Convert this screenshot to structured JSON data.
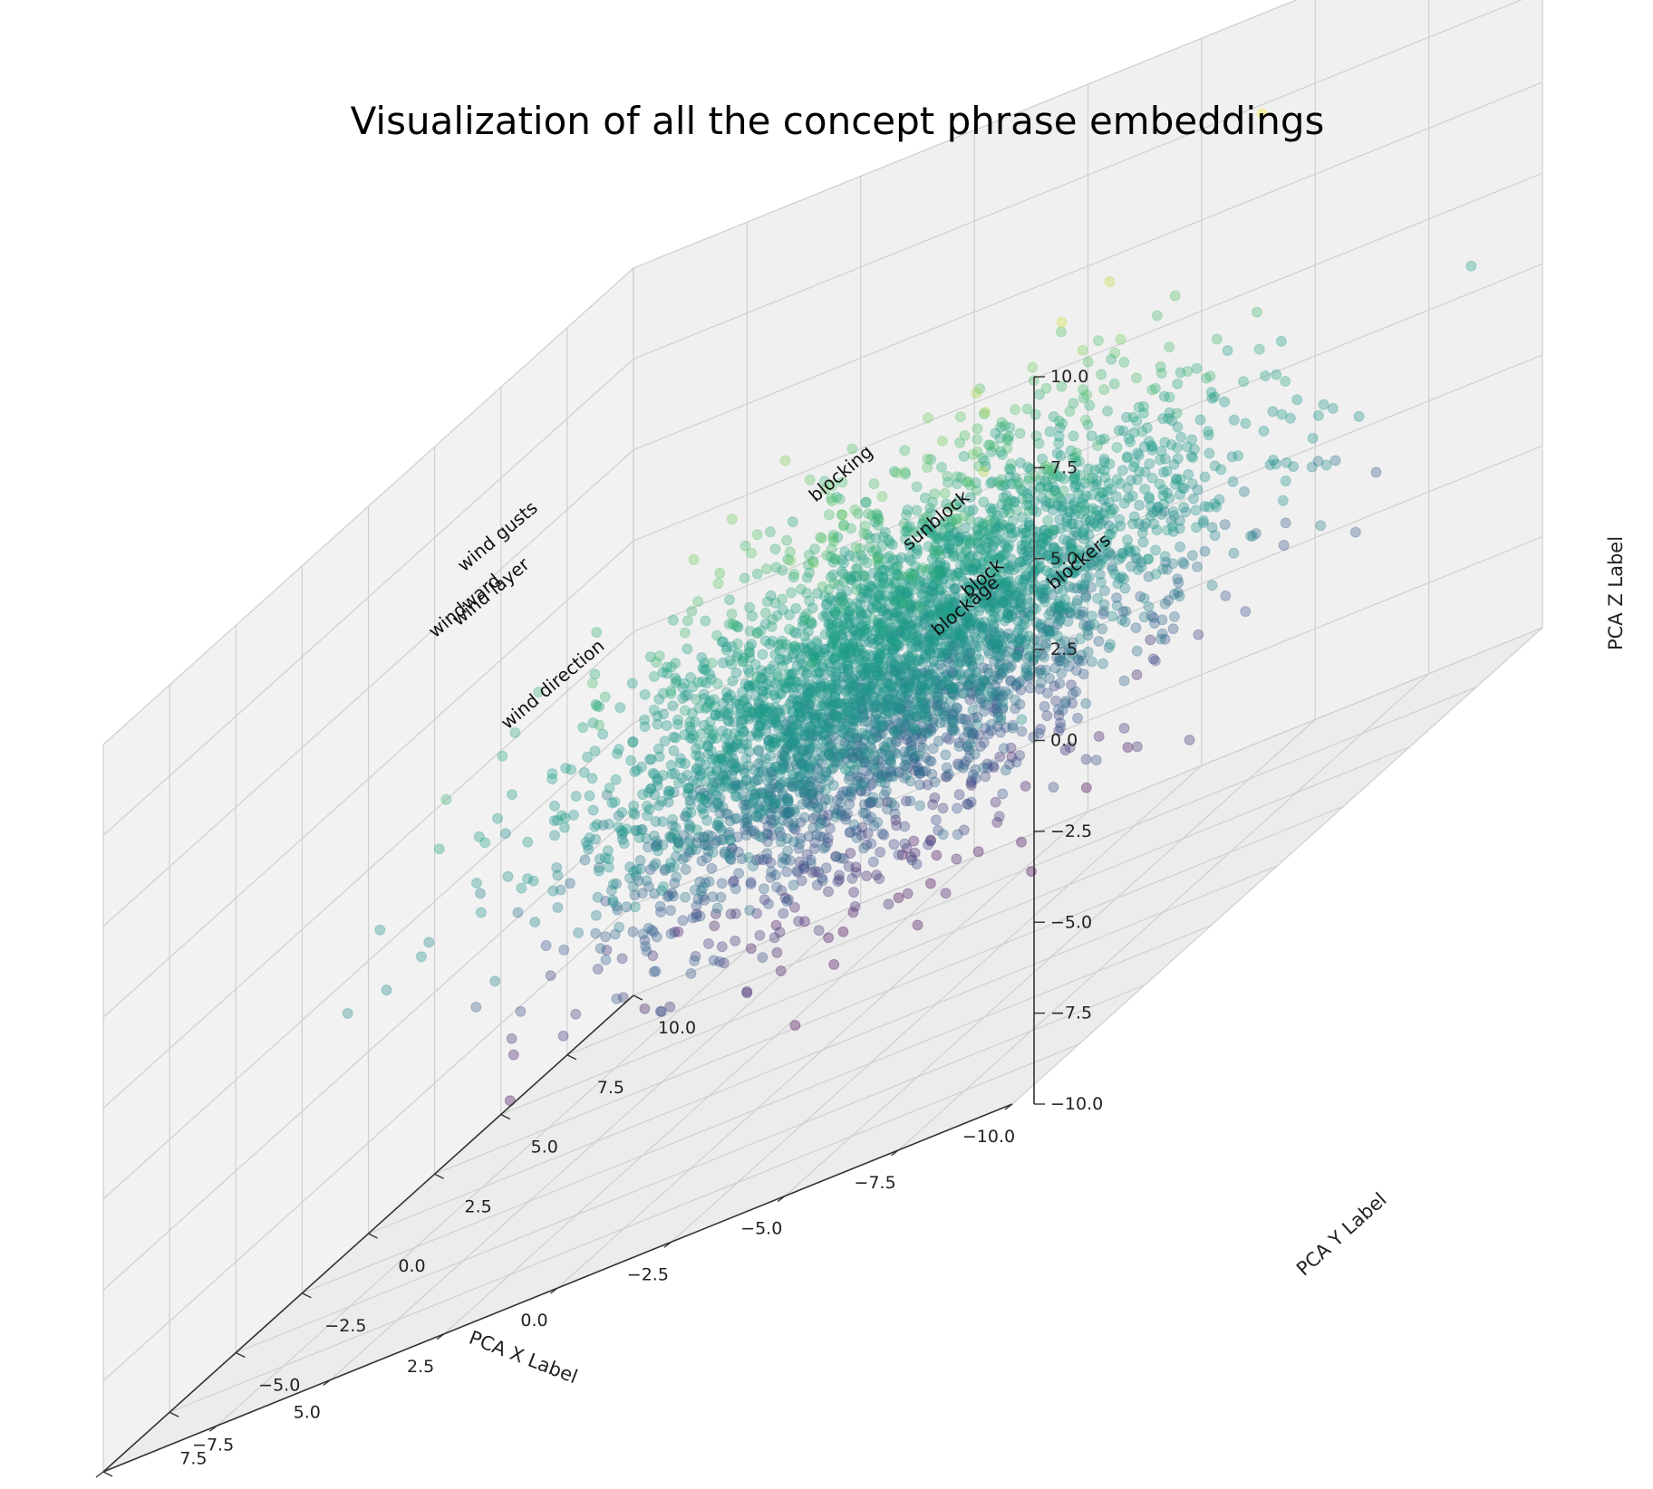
{
  "chart_data": {
    "type": "scatter",
    "title": "Visualization of all the concept phrase embeddings",
    "xlabel": "PCA X Label",
    "ylabel": "PCA Y Label",
    "zlabel": "PCA Z Label",
    "xlim": [
      -10,
      10
    ],
    "ylim": [
      -10,
      10
    ],
    "zlim": [
      -10,
      10
    ],
    "x_ticks": [
      "−10.0",
      "−7.5",
      "−5.0",
      "−2.5",
      "0.0",
      "2.5",
      "5.0",
      "7.5",
      "10.0"
    ],
    "y_ticks": [
      "−10.0",
      "−7.5",
      "−5.0",
      "−2.5",
      "0.0",
      "2.5",
      "5.0",
      "7.5",
      "10.0"
    ],
    "z_ticks": [
      "−10.0",
      "−7.5",
      "−5.0",
      "−2.5",
      "0.0",
      "2.5",
      "5.0",
      "7.5",
      "10.0"
    ],
    "grid": true,
    "colormap": "viridis",
    "colormap_stops": [
      "#440154",
      "#3b528b",
      "#21918c",
      "#1fa187",
      "#5ec962",
      "#fde725"
    ],
    "marker": "circle",
    "point_alpha": 0.35,
    "annotations": [
      {
        "label": "wind gusts"
      },
      {
        "label": "windward"
      },
      {
        "label": "wind layer"
      },
      {
        "label": "wind direction"
      },
      {
        "label": "blocking"
      },
      {
        "label": "sunblock"
      },
      {
        "label": "block"
      },
      {
        "label": "blockage"
      },
      {
        "label": "blockers"
      }
    ]
  }
}
